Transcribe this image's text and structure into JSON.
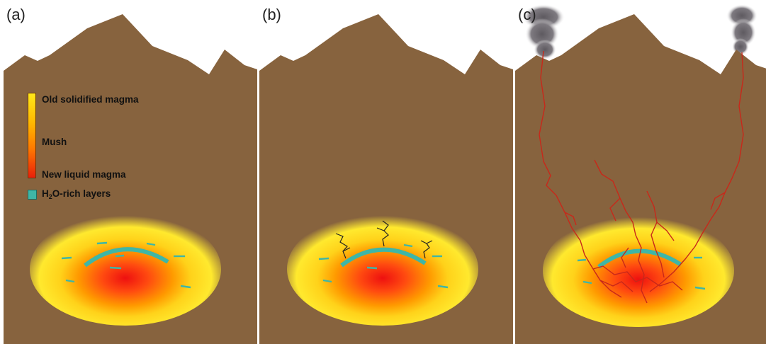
{
  "panels": [
    {
      "label": "(a)"
    },
    {
      "label": "(b)"
    },
    {
      "label": "(c)"
    }
  ],
  "legend": {
    "old": "Old solidified magma",
    "mush": "Mush",
    "new": "New liquid magma",
    "h2o_prefix": "H",
    "h2o_sub": "2",
    "h2o_suffix": "O-rich layers"
  },
  "colors": {
    "crust": "#87633e",
    "mush_outer": "#ffe92e",
    "mush_mid": "#ffb000",
    "core": "#ff5a10",
    "hot_center": "#ee1010",
    "water_layer": "#3fb6a6",
    "fracture_b": "#222222",
    "fracture_c": "#c8281a",
    "plume": "#6e6a6e"
  }
}
